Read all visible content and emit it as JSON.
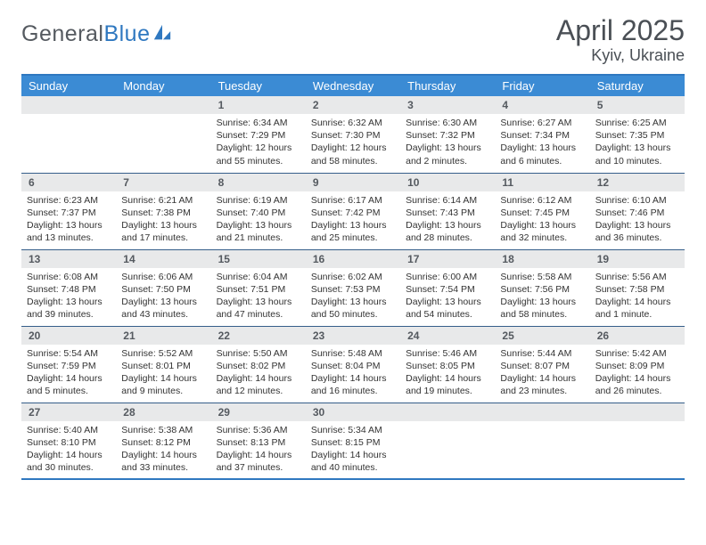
{
  "brand": {
    "word1": "General",
    "word2": "Blue",
    "logo_color": "#2f78c0",
    "text_color": "#555a60"
  },
  "header": {
    "title": "April 2025",
    "location": "Kyiv, Ukraine"
  },
  "style": {
    "header_bg": "#3b8bd4",
    "border_color": "#2f78c0",
    "row_divider": "#355e8a",
    "daynum_bg": "#e8e9ea",
    "page_bg": "#ffffff",
    "title_fontsize": 32,
    "location_fontsize": 18,
    "dayheader_fontsize": 13,
    "daynum_fontsize": 12,
    "body_fontsize": 10.5
  },
  "weekdays": [
    "Sunday",
    "Monday",
    "Tuesday",
    "Wednesday",
    "Thursday",
    "Friday",
    "Saturday"
  ],
  "weeks": [
    [
      {
        "day": null
      },
      {
        "day": null
      },
      {
        "day": "1",
        "sunrise": "Sunrise: 6:34 AM",
        "sunset": "Sunset: 7:29 PM",
        "daylight": "Daylight: 12 hours and 55 minutes."
      },
      {
        "day": "2",
        "sunrise": "Sunrise: 6:32 AM",
        "sunset": "Sunset: 7:30 PM",
        "daylight": "Daylight: 12 hours and 58 minutes."
      },
      {
        "day": "3",
        "sunrise": "Sunrise: 6:30 AM",
        "sunset": "Sunset: 7:32 PM",
        "daylight": "Daylight: 13 hours and 2 minutes."
      },
      {
        "day": "4",
        "sunrise": "Sunrise: 6:27 AM",
        "sunset": "Sunset: 7:34 PM",
        "daylight": "Daylight: 13 hours and 6 minutes."
      },
      {
        "day": "5",
        "sunrise": "Sunrise: 6:25 AM",
        "sunset": "Sunset: 7:35 PM",
        "daylight": "Daylight: 13 hours and 10 minutes."
      }
    ],
    [
      {
        "day": "6",
        "sunrise": "Sunrise: 6:23 AM",
        "sunset": "Sunset: 7:37 PM",
        "daylight": "Daylight: 13 hours and 13 minutes."
      },
      {
        "day": "7",
        "sunrise": "Sunrise: 6:21 AM",
        "sunset": "Sunset: 7:38 PM",
        "daylight": "Daylight: 13 hours and 17 minutes."
      },
      {
        "day": "8",
        "sunrise": "Sunrise: 6:19 AM",
        "sunset": "Sunset: 7:40 PM",
        "daylight": "Daylight: 13 hours and 21 minutes."
      },
      {
        "day": "9",
        "sunrise": "Sunrise: 6:17 AM",
        "sunset": "Sunset: 7:42 PM",
        "daylight": "Daylight: 13 hours and 25 minutes."
      },
      {
        "day": "10",
        "sunrise": "Sunrise: 6:14 AM",
        "sunset": "Sunset: 7:43 PM",
        "daylight": "Daylight: 13 hours and 28 minutes."
      },
      {
        "day": "11",
        "sunrise": "Sunrise: 6:12 AM",
        "sunset": "Sunset: 7:45 PM",
        "daylight": "Daylight: 13 hours and 32 minutes."
      },
      {
        "day": "12",
        "sunrise": "Sunrise: 6:10 AM",
        "sunset": "Sunset: 7:46 PM",
        "daylight": "Daylight: 13 hours and 36 minutes."
      }
    ],
    [
      {
        "day": "13",
        "sunrise": "Sunrise: 6:08 AM",
        "sunset": "Sunset: 7:48 PM",
        "daylight": "Daylight: 13 hours and 39 minutes."
      },
      {
        "day": "14",
        "sunrise": "Sunrise: 6:06 AM",
        "sunset": "Sunset: 7:50 PM",
        "daylight": "Daylight: 13 hours and 43 minutes."
      },
      {
        "day": "15",
        "sunrise": "Sunrise: 6:04 AM",
        "sunset": "Sunset: 7:51 PM",
        "daylight": "Daylight: 13 hours and 47 minutes."
      },
      {
        "day": "16",
        "sunrise": "Sunrise: 6:02 AM",
        "sunset": "Sunset: 7:53 PM",
        "daylight": "Daylight: 13 hours and 50 minutes."
      },
      {
        "day": "17",
        "sunrise": "Sunrise: 6:00 AM",
        "sunset": "Sunset: 7:54 PM",
        "daylight": "Daylight: 13 hours and 54 minutes."
      },
      {
        "day": "18",
        "sunrise": "Sunrise: 5:58 AM",
        "sunset": "Sunset: 7:56 PM",
        "daylight": "Daylight: 13 hours and 58 minutes."
      },
      {
        "day": "19",
        "sunrise": "Sunrise: 5:56 AM",
        "sunset": "Sunset: 7:58 PM",
        "daylight": "Daylight: 14 hours and 1 minute."
      }
    ],
    [
      {
        "day": "20",
        "sunrise": "Sunrise: 5:54 AM",
        "sunset": "Sunset: 7:59 PM",
        "daylight": "Daylight: 14 hours and 5 minutes."
      },
      {
        "day": "21",
        "sunrise": "Sunrise: 5:52 AM",
        "sunset": "Sunset: 8:01 PM",
        "daylight": "Daylight: 14 hours and 9 minutes."
      },
      {
        "day": "22",
        "sunrise": "Sunrise: 5:50 AM",
        "sunset": "Sunset: 8:02 PM",
        "daylight": "Daylight: 14 hours and 12 minutes."
      },
      {
        "day": "23",
        "sunrise": "Sunrise: 5:48 AM",
        "sunset": "Sunset: 8:04 PM",
        "daylight": "Daylight: 14 hours and 16 minutes."
      },
      {
        "day": "24",
        "sunrise": "Sunrise: 5:46 AM",
        "sunset": "Sunset: 8:05 PM",
        "daylight": "Daylight: 14 hours and 19 minutes."
      },
      {
        "day": "25",
        "sunrise": "Sunrise: 5:44 AM",
        "sunset": "Sunset: 8:07 PM",
        "daylight": "Daylight: 14 hours and 23 minutes."
      },
      {
        "day": "26",
        "sunrise": "Sunrise: 5:42 AM",
        "sunset": "Sunset: 8:09 PM",
        "daylight": "Daylight: 14 hours and 26 minutes."
      }
    ],
    [
      {
        "day": "27",
        "sunrise": "Sunrise: 5:40 AM",
        "sunset": "Sunset: 8:10 PM",
        "daylight": "Daylight: 14 hours and 30 minutes."
      },
      {
        "day": "28",
        "sunrise": "Sunrise: 5:38 AM",
        "sunset": "Sunset: 8:12 PM",
        "daylight": "Daylight: 14 hours and 33 minutes."
      },
      {
        "day": "29",
        "sunrise": "Sunrise: 5:36 AM",
        "sunset": "Sunset: 8:13 PM",
        "daylight": "Daylight: 14 hours and 37 minutes."
      },
      {
        "day": "30",
        "sunrise": "Sunrise: 5:34 AM",
        "sunset": "Sunset: 8:15 PM",
        "daylight": "Daylight: 14 hours and 40 minutes."
      },
      {
        "day": null
      },
      {
        "day": null
      },
      {
        "day": null
      }
    ]
  ]
}
